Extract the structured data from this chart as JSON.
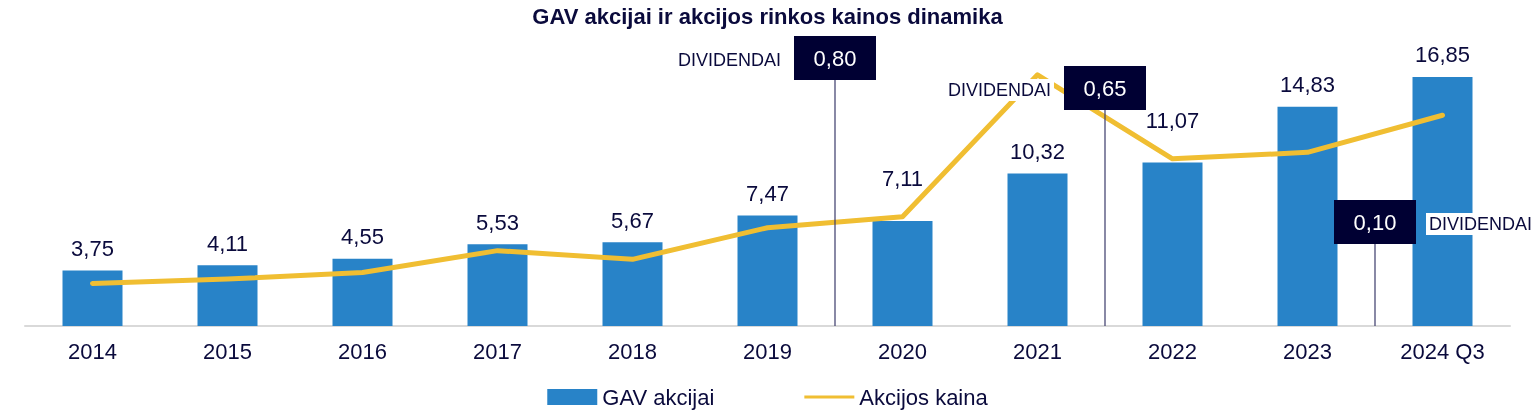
{
  "chart_data": {
    "type": "bar",
    "title": "GAV akcijai ir akcijos rinkos kainos dinamika",
    "categories": [
      "2014",
      "2015",
      "2016",
      "2017",
      "2018",
      "2019",
      "2020",
      "2021",
      "2022",
      "2023",
      "2024 Q3"
    ],
    "series": [
      {
        "name": "GAV akcijai",
        "color": "#2883c8",
        "values": [
          3.75,
          4.11,
          4.55,
          5.53,
          5.67,
          7.47,
          7.11,
          10.32,
          11.07,
          14.83,
          16.85
        ],
        "value_labels": [
          "3,75",
          "4,11",
          "4,55",
          "5,53",
          "5,67",
          "7,47",
          "7,11",
          "10,32",
          "11,07",
          "14,83",
          "16,85"
        ]
      },
      {
        "name": "Akcijos kaina",
        "type": "line",
        "color": "#f0be32",
        "values": [
          2.88,
          3.18,
          3.62,
          5.1,
          4.51,
          6.65,
          7.39,
          17.0,
          11.31,
          11.75,
          14.26
        ]
      }
    ],
    "tick_labels": "x",
    "grid": false,
    "legend": "bottom",
    "marker": "none",
    "line_style": "solid",
    "annotations": [
      "DIVIDENDAI",
      "0,80",
      "DIVIDENDAI",
      "0,65",
      "0,10",
      "DIVIDENDAI"
    ]
  }
}
